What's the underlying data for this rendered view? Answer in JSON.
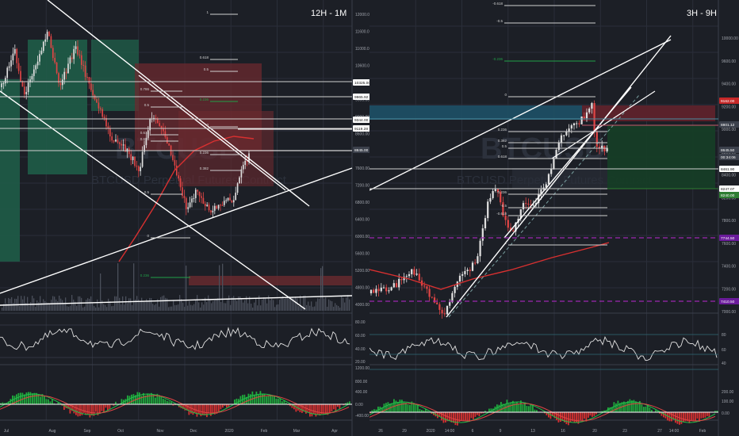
{
  "colors": {
    "background": "#1c1f26",
    "grid": "#2a2e39",
    "up": "#e0e0e0",
    "down": "#e04545",
    "ma": "#d83030",
    "trend": "#ffffff",
    "support": "#9c27b0",
    "fib_green": "#21a048",
    "level_white": "#d0d0d0",
    "cloud_green": "#1f5c48",
    "cloud_red": "#6b2a2f",
    "zone_teal": "#1e4e63",
    "zone_red": "#5e2028",
    "zone_green": "#163d26",
    "macd_pos": "#1faa3c",
    "macd_neg": "#d83030",
    "price_tag_red": "#c62828",
    "price_tag_green": "#2e7d32",
    "price_tag_grey": "#3c414c",
    "price_tag_purple": "#6a1b9a"
  },
  "left_panel": {
    "title": "12H - 1M",
    "watermark": "BTCUSD",
    "watermark_sub": "BTCUSD Perpetual Futures Contract",
    "price_axis": [
      "12000.00",
      "11600.00",
      "11000.00",
      "10600.00",
      "10000.00",
      "9600.00",
      "9000.00",
      "8600.00",
      "8000.00",
      "7600.00",
      "7200.00",
      "6800.00",
      "6400.00",
      "6000.00",
      "5600.00",
      "5200.00",
      "4800.00",
      "4000.00"
    ],
    "price_tags": [
      {
        "label": "10325.00",
        "kind": "white"
      },
      {
        "label": "9965.92",
        "kind": "white"
      },
      {
        "label": "9344.00",
        "kind": "white"
      },
      {
        "label": "9119.28",
        "kind": "white"
      },
      {
        "label": "8845.00",
        "kind": "grey"
      }
    ],
    "fib_labels": [
      "1",
      "0.618",
      "0.5",
      "0.786",
      "0.5",
      "0.236",
      "0",
      "0.618",
      "0.618",
      "0.236",
      "0.382",
      "0.5",
      "0",
      "0.236"
    ],
    "osc_axis": [
      "80.00",
      "60.00",
      "40.00",
      "20.00"
    ],
    "macd_axis": [
      "1200.00",
      "800.00",
      "400.00",
      "0.00",
      "-400.00"
    ],
    "time_axis": [
      "Jul",
      "Aug",
      "Sep",
      "Oct",
      "Nov",
      "Dec",
      "2020",
      "Feb",
      "Mar",
      "Apr"
    ]
  },
  "right_panel": {
    "title": "3H - 9H",
    "watermark": "BTCUSD",
    "watermark_sub": "BTCUSD Perpetual Futures Contract",
    "price_axis": [
      "10000.00",
      "9600.00",
      "9400.00",
      "9200.00",
      "9000.00",
      "8800.00",
      "8400.00",
      "8200.00",
      "7800.00",
      "7600.00",
      "7400.00",
      "7200.00",
      "7000.00"
    ],
    "price_tags": [
      {
        "label": "9162.00",
        "kind": "red"
      },
      {
        "label": "8801.12",
        "kind": "grey"
      },
      {
        "label": "8645.50",
        "kind": "grey"
      },
      {
        "label": "00:34:06",
        "kind": "grey"
      },
      {
        "label": "8461.90",
        "kind": "white"
      },
      {
        "label": "8247.07",
        "kind": "white"
      },
      {
        "label": "8240.00",
        "kind": "green"
      },
      {
        "label": "7744.50",
        "kind": "purple"
      },
      {
        "label": "7410.50",
        "kind": "purple"
      }
    ],
    "fib_labels": [
      "-0.618",
      "-0.5",
      "-0.236",
      "0",
      "0.236",
      "0.382",
      "0.5",
      "0.618",
      "-0.236",
      "-0.5",
      "-0.618",
      "1"
    ],
    "osc_axis": [
      "80",
      "60",
      "40"
    ],
    "macd_axis": [
      "200.00",
      "100.00",
      "0.00"
    ],
    "time_axis": [
      "26",
      "29",
      "2020",
      "14:00",
      "6",
      "9",
      "13",
      "16",
      "20",
      "23",
      "27",
      "14:00",
      "Feb"
    ]
  },
  "chart_data": [
    {
      "type": "line",
      "title": "12H - 1M",
      "ylim": [
        4000,
        12400
      ],
      "x": [
        "Jul",
        "Aug",
        "Sep",
        "Oct",
        "Nov",
        "Dec",
        "2020"
      ],
      "series": [
        {
          "values": [
            11800,
            11200,
            10200,
            8300,
            9200,
            7400,
            8845
          ]
        }
      ],
      "levels": [
        10325,
        9965.92,
        9344,
        9119.28,
        8845
      ]
    },
    {
      "type": "line",
      "title": "3H - 9H",
      "ylim": [
        6900,
        10200
      ],
      "x": [
        "26",
        "29",
        "2020",
        "6",
        "9",
        "13",
        "16",
        "20"
      ],
      "series": [
        {
          "values": [
            7250,
            7400,
            7100,
            7700,
            8100,
            8250,
            8700,
            8645.5
          ]
        }
      ],
      "levels": [
        9162,
        8801.12,
        8645.5,
        8461.9,
        8247.07,
        8240,
        7744.5,
        7410.5
      ]
    }
  ]
}
